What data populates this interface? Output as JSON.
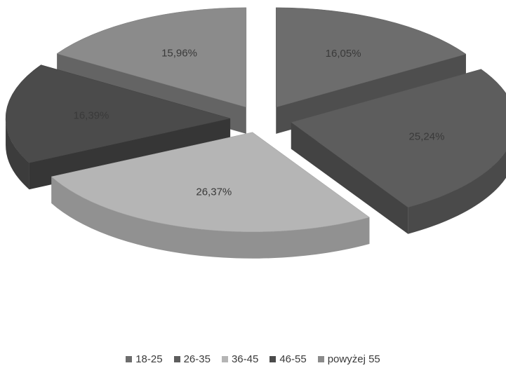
{
  "chart_data": {
    "type": "pie",
    "title": "",
    "categories": [
      "18-25",
      "26-35",
      "36-45",
      "46-55",
      "powyżej 55"
    ],
    "values": [
      16.05,
      25.24,
      26.37,
      16.39,
      15.96
    ],
    "labels": [
      "16,05%",
      "25,24%",
      "26,37%",
      "16,39%",
      "15,96%"
    ],
    "colors": {
      "18-25": "#6d6d6d",
      "26-35": "#5d5d5d",
      "36-45": "#b5b5b5",
      "46-55": "#4b4b4b",
      "powyżej 55": "#8b8b8b"
    },
    "style": "3d-exploded",
    "legend": {
      "position": "bottom"
    }
  }
}
